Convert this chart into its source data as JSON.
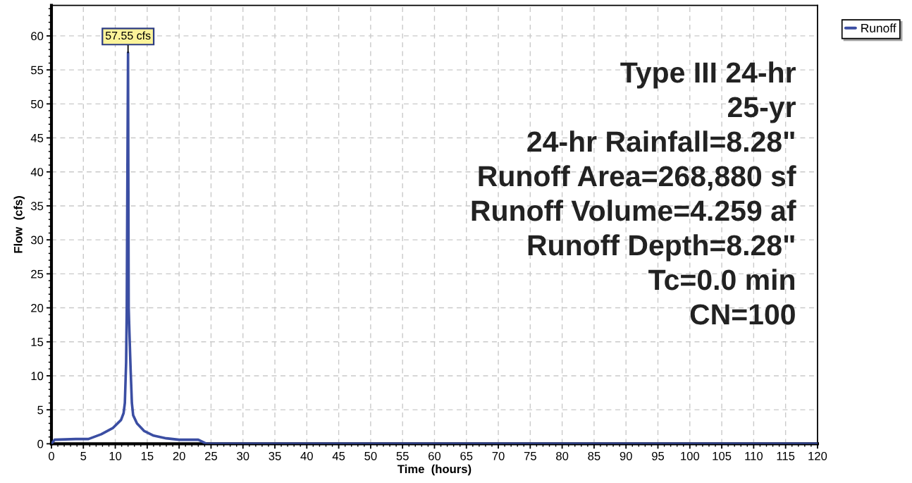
{
  "chart_data": {
    "type": "line",
    "xlabel": "Time  (hours)",
    "ylabel": "Flow  (cfs)",
    "x": [
      0,
      0.5,
      3.8,
      5.8,
      7.8,
      9.6,
      10.9,
      11.3,
      11.5,
      11.7,
      11.8,
      11.9,
      12.0,
      12.1,
      12.2,
      12.4,
      12.6,
      12.8,
      13.4,
      14.5,
      16.0,
      18.0,
      20.0,
      23.0,
      24.3,
      120
    ],
    "series": [
      {
        "name": "Runoff",
        "color": "#3b4ea3",
        "values": [
          0,
          0.6,
          0.7,
          0.7,
          1.4,
          2.3,
          3.5,
          4.5,
          6,
          12,
          20,
          40,
          57.55,
          20,
          16.8,
          11,
          6,
          4.2,
          3.0,
          1.9,
          1.2,
          0.8,
          0.6,
          0.6,
          0,
          0
        ]
      }
    ],
    "xlim": [
      0,
      120
    ],
    "ylim": [
      0,
      64.5
    ],
    "xticks": [
      0,
      5,
      10,
      15,
      20,
      25,
      30,
      35,
      40,
      45,
      50,
      55,
      60,
      65,
      70,
      75,
      80,
      85,
      90,
      95,
      100,
      105,
      110,
      115,
      120
    ],
    "yticks": [
      0,
      5,
      10,
      15,
      20,
      25,
      30,
      35,
      40,
      45,
      50,
      55,
      60
    ],
    "grid": true,
    "legend": "top right",
    "line_style": "solid",
    "annotations": [
      {
        "text": "57.55 cfs",
        "x": 12.0,
        "y": 57.55
      },
      "Type III 24-hr",
      "25-yr",
      "24-hr Rainfall=8.28\"",
      "Runoff Area=268,880 sf",
      "Runoff Volume=4.259 af",
      "Runoff Depth=8.28\"",
      "Tc=0.0 min",
      "CN=100"
    ]
  }
}
